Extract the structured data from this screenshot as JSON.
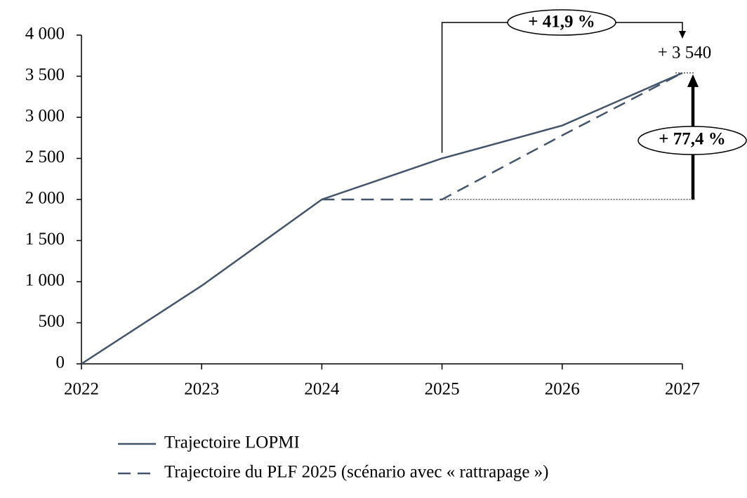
{
  "chart_data": {
    "type": "line",
    "categories": [
      "2022",
      "2023",
      "2024",
      "2025",
      "2026",
      "2027"
    ],
    "series": [
      {
        "name": "Trajectoire LOPMI",
        "color": "#44546a",
        "dash": false,
        "values": [
          0,
          950,
          2000,
          2500,
          2900,
          3540
        ]
      },
      {
        "name": "Trajectoire du PLF 2025 (scénario avec « rattrapage »)",
        "color": "#44546a",
        "dash": true,
        "values": [
          null,
          null,
          2000,
          2000,
          2780,
          3540
        ]
      }
    ],
    "ylim": [
      0,
      4000
    ],
    "yticks": [
      0,
      500,
      {
        "value": 1000,
        "label": "1 000"
      },
      {
        "value": 1500,
        "label": "1 500"
      },
      {
        "value": 2000,
        "label": "2 000"
      },
      {
        "value": 2500,
        "label": "2 500"
      },
      {
        "value": 3000,
        "label": "3 000"
      },
      {
        "value": 3500,
        "label": "3 500"
      },
      {
        "value": 4000,
        "label": "4 000"
      }
    ],
    "annotations": [
      "+ 41,9 %",
      "+ 77,4 %",
      "+ 3 540"
    ],
    "grid": false
  }
}
